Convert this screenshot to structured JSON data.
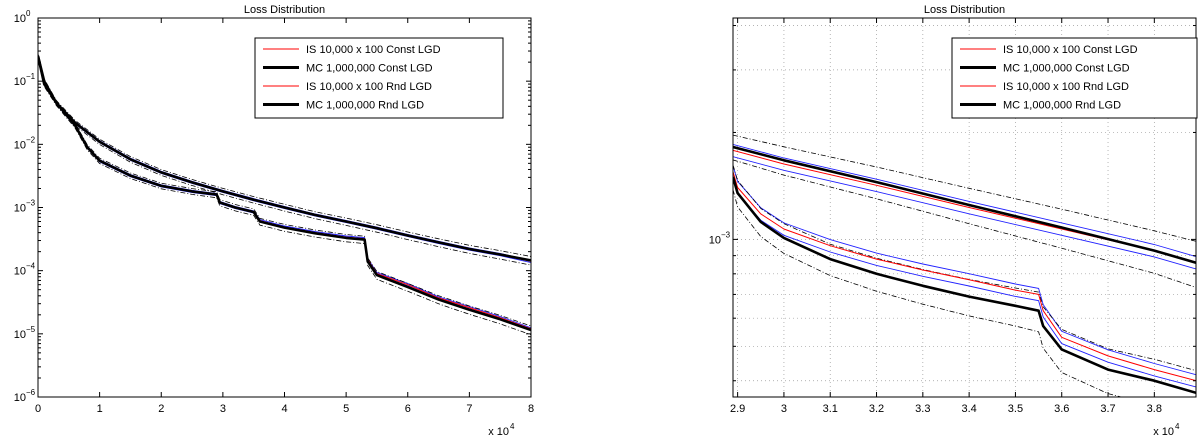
{
  "chart_data": [
    {
      "type": "line",
      "title": "Loss Distribution",
      "xlabel": "",
      "ylabel": "",
      "x_exponent_label": "x 10",
      "x_exponent": "4",
      "xscale": "linear",
      "yscale": "log",
      "xlim": [
        0,
        8
      ],
      "ylim": [
        1e-06,
        1
      ],
      "xticks": [
        0,
        1,
        2,
        3,
        4,
        5,
        6,
        7,
        8
      ],
      "xticklabels": [
        "0",
        "1",
        "2",
        "3",
        "4",
        "5",
        "6",
        "7",
        "8"
      ],
      "yticks": [
        {
          "value": 1,
          "base": "10",
          "exp": "0"
        },
        {
          "value": 0.1,
          "base": "10",
          "exp": "−1"
        },
        {
          "value": 0.01,
          "base": "10",
          "exp": "−2"
        },
        {
          "value": 0.001,
          "base": "10",
          "exp": "−3"
        },
        {
          "value": 0.0001,
          "base": "10",
          "exp": "−4"
        },
        {
          "value": 1e-05,
          "base": "10",
          "exp": "−5"
        },
        {
          "value": 1e-06,
          "base": "10",
          "exp": "−6"
        }
      ],
      "grid": false,
      "legend_position": "top-right",
      "series": [
        {
          "name": "IS 10,000 x 100 Const LGD",
          "color": "#ff0000",
          "style": "thin",
          "x": [
            0,
            0.1,
            0.3,
            0.6,
            1,
            1.5,
            2,
            2.5,
            3,
            3.5,
            4,
            4.5,
            5,
            5.5,
            6,
            6.5,
            7,
            7.5,
            8
          ],
          "y": [
            0.25,
            0.09,
            0.045,
            0.022,
            0.011,
            0.0058,
            0.0036,
            0.0025,
            0.0018,
            0.00133,
            0.001,
            0.00076,
            0.0006,
            0.00047,
            0.00036,
            0.00028,
            0.00022,
            0.00018,
            0.00014
          ]
        },
        {
          "name": "MC 1,000,000 Const LGD",
          "color": "#000000",
          "style": "thick",
          "x": [
            0,
            0.1,
            0.3,
            0.6,
            1,
            1.5,
            2,
            2.5,
            3,
            3.5,
            4,
            4.5,
            5,
            5.5,
            6,
            6.5,
            7,
            7.5,
            8
          ],
          "y": [
            0.25,
            0.09,
            0.045,
            0.022,
            0.011,
            0.0058,
            0.0036,
            0.0025,
            0.0018,
            0.00133,
            0.001,
            0.00076,
            0.0006,
            0.00047,
            0.00036,
            0.00028,
            0.00022,
            0.00018,
            0.000145
          ]
        },
        {
          "name": "IS 10,000 x 100 Rnd LGD",
          "color": "#ff0000",
          "style": "thin",
          "x": [
            0,
            0.1,
            0.3,
            0.6,
            0.8,
            1,
            1.5,
            2,
            2.5,
            2.9,
            2.95,
            3.2,
            3.5,
            3.6,
            4,
            4.5,
            5,
            5.3,
            5.35,
            5.5,
            6,
            6.5,
            7,
            7.5,
            8
          ],
          "y": [
            0.25,
            0.1,
            0.045,
            0.02,
            0.009,
            0.0055,
            0.0032,
            0.0022,
            0.0018,
            0.0016,
            0.0012,
            0.001,
            0.00085,
            0.00062,
            0.00049,
            0.0004,
            0.00034,
            0.00032,
            0.00015,
            9e-05,
            6e-05,
            3.7e-05,
            2.6e-05,
            1.8e-05,
            1.2e-05
          ]
        },
        {
          "name": "MC 1,000,000 Rnd LGD",
          "color": "#000000",
          "style": "thick",
          "x": [
            0,
            0.1,
            0.3,
            0.6,
            0.8,
            1,
            1.5,
            2,
            2.5,
            2.9,
            2.95,
            3.2,
            3.5,
            3.6,
            4,
            4.5,
            5,
            5.3,
            5.35,
            5.5,
            6,
            6.5,
            7,
            7.5,
            8
          ],
          "y": [
            0.25,
            0.1,
            0.045,
            0.02,
            0.009,
            0.0055,
            0.0032,
            0.0022,
            0.0018,
            0.0016,
            0.0012,
            0.001,
            0.00085,
            0.0006,
            0.00048,
            0.00039,
            0.00033,
            0.00031,
            0.00014,
            8.5e-05,
            5.5e-05,
            3.5e-05,
            2.4e-05,
            1.7e-05,
            1.15e-05
          ]
        }
      ],
      "legend": [
        {
          "label": "IS 10,000 x 100 Const LGD",
          "color": "#ff0000",
          "width": 1
        },
        {
          "label": "MC 1,000,000 Const LGD",
          "color": "#000000",
          "width": 3
        },
        {
          "label": "IS 10,000 x 100 Rnd LGD",
          "color": "#ff0000",
          "width": 1
        },
        {
          "label": "MC 1,000,000 Rnd LGD",
          "color": "#000000",
          "width": 3
        }
      ]
    },
    {
      "type": "line",
      "title": "Loss Distribution",
      "xlabel": "",
      "ylabel": "",
      "x_exponent_label": "x 10",
      "x_exponent": "4",
      "xscale": "linear",
      "yscale": "log",
      "xlim": [
        2.89,
        3.89
      ],
      "ylim": [
        0.00036,
        0.0042
      ],
      "xticks": [
        2.9,
        3,
        3.1,
        3.2,
        3.3,
        3.4,
        3.5,
        3.6,
        3.7,
        3.8
      ],
      "xticklabels": [
        "2.9",
        "3",
        "3.1",
        "3.2",
        "3.3",
        "3.4",
        "3.5",
        "3.6",
        "3.7",
        "3.8"
      ],
      "yticks": [
        {
          "value": 0.001,
          "base": "10",
          "exp": "−3"
        }
      ],
      "grid": true,
      "legend_position": "top-right",
      "series": [
        {
          "name": "IS 10,000 x 100 Const LGD",
          "color": "#ff0000",
          "style": "thin",
          "x": [
            2.89,
            3.0,
            3.2,
            3.4,
            3.6,
            3.8,
            3.89
          ],
          "y": [
            0.00178,
            0.00163,
            0.00142,
            0.00123,
            0.00107,
            0.00093,
            0.00086
          ]
        },
        {
          "name": "MC 1,000,000 Const LGD",
          "color": "#000000",
          "style": "thick",
          "x": [
            2.89,
            3.0,
            3.2,
            3.4,
            3.6,
            3.8,
            3.89
          ],
          "y": [
            0.00182,
            0.00167,
            0.00145,
            0.00125,
            0.00108,
            0.00093,
            0.00086
          ]
        },
        {
          "name": "IS 10,000 x 100 Rnd LGD",
          "color": "#ff0000",
          "style": "thin",
          "x": [
            2.89,
            2.9,
            2.95,
            3.0,
            3.1,
            3.2,
            3.3,
            3.4,
            3.5,
            3.55,
            3.56,
            3.6,
            3.7,
            3.8,
            3.89
          ],
          "y": [
            0.00155,
            0.0014,
            0.00118,
            0.00107,
            0.00096,
            0.00088,
            0.00082,
            0.00077,
            0.00072,
            0.0007,
            0.00063,
            0.00053,
            0.00047,
            0.00043,
            0.0004
          ]
        },
        {
          "name": "MC 1,000,000 Rnd LGD",
          "color": "#000000",
          "style": "thick",
          "x": [
            2.89,
            2.9,
            2.95,
            3.0,
            3.1,
            3.2,
            3.3,
            3.4,
            3.5,
            3.55,
            3.56,
            3.6,
            3.7,
            3.8,
            3.89
          ],
          "y": [
            0.0015,
            0.00135,
            0.00112,
            0.00101,
            0.00088,
            0.0008,
            0.00074,
            0.00069,
            0.00065,
            0.00063,
            0.00057,
            0.00049,
            0.00043,
            0.0004,
            0.00037
          ]
        }
      ],
      "legend": [
        {
          "label": "IS 10,000 x 100 Const LGD",
          "color": "#ff0000",
          "width": 1
        },
        {
          "label": "MC 1,000,000 Const LGD",
          "color": "#000000",
          "width": 3
        },
        {
          "label": "IS 10,000 x 100 Rnd LGD",
          "color": "#ff0000",
          "width": 1
        },
        {
          "label": "MC 1,000,000 Rnd LGD",
          "color": "#000000",
          "width": 3
        }
      ]
    }
  ]
}
